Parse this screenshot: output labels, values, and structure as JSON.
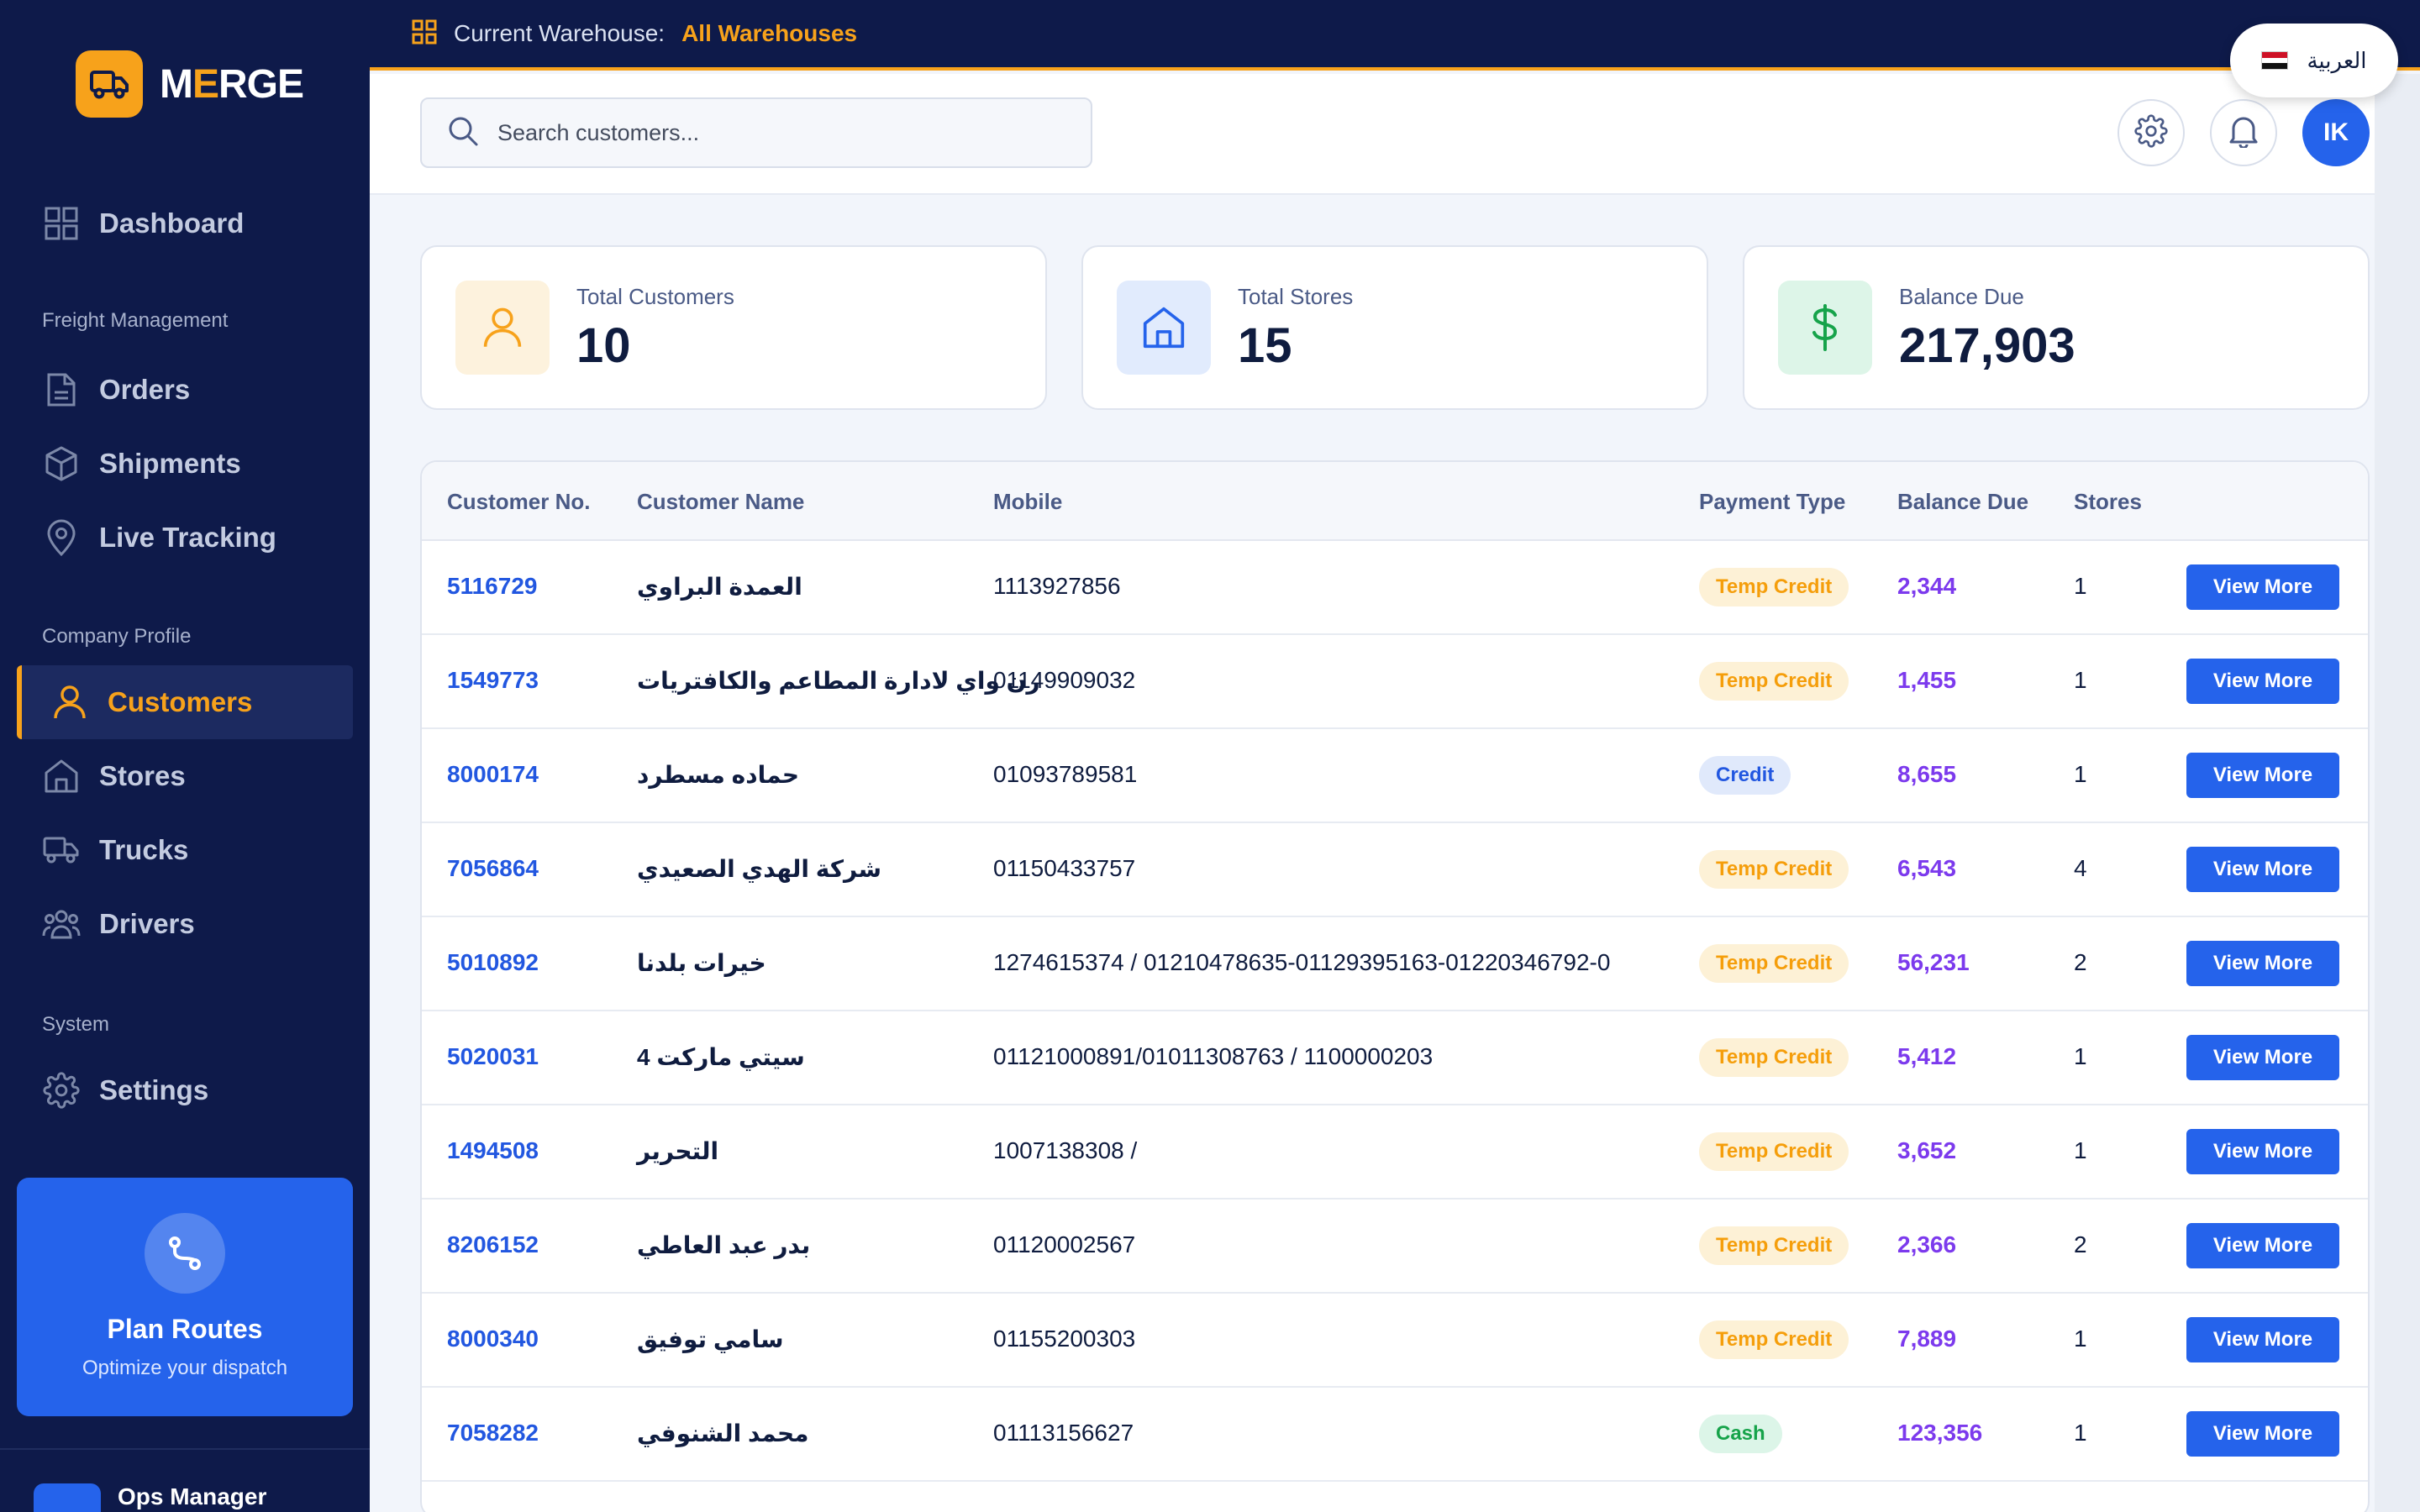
{
  "brand": {
    "name_part1": "M",
    "name_accent": "E",
    "name_part2": "RGE"
  },
  "sidebar": {
    "dashboard": "Dashboard",
    "section_freight": "Freight Management",
    "orders": "Orders",
    "shipments": "Shipments",
    "live_tracking": "Live Tracking",
    "section_company": "Company Profile",
    "customers": "Customers",
    "stores": "Stores",
    "trucks": "Trucks",
    "drivers": "Drivers",
    "section_system": "System",
    "settings": "Settings",
    "plan_title": "Plan Routes",
    "plan_subtitle": "Optimize your dispatch",
    "user_name": "Ops Manager"
  },
  "topbar": {
    "warehouse_label": "Current Warehouse:",
    "warehouse_value": "All Warehouses",
    "language": "العربية"
  },
  "header": {
    "search_placeholder": "Search customers...",
    "avatar_initials": "IK"
  },
  "stats": [
    {
      "label": "Total Customers",
      "value": "10"
    },
    {
      "label": "Total Stores",
      "value": "15"
    },
    {
      "label": "Balance Due",
      "value": "217,903"
    }
  ],
  "table": {
    "columns": [
      "Customer No.",
      "Customer Name",
      "Mobile",
      "Payment Type",
      "Balance Due",
      "Stores"
    ],
    "action_label": "View More",
    "rows": [
      {
        "no": "5116729",
        "name": "العمدة البراوي",
        "mobile": "1113927856",
        "payment": "Temp Credit",
        "balance": "2,344",
        "stores": "1"
      },
      {
        "no": "1549773",
        "name": "رن واي لادارة المطاعم والكافتريات",
        "mobile": "01149909032",
        "payment": "Temp Credit",
        "balance": "1,455",
        "stores": "1"
      },
      {
        "no": "8000174",
        "name": "حماده مسطرد",
        "mobile": "01093789581",
        "payment": "Credit",
        "balance": "8,655",
        "stores": "1"
      },
      {
        "no": "7056864",
        "name": "شركة الهدي الصعيدي",
        "mobile": "01150433757",
        "payment": "Temp Credit",
        "balance": "6,543",
        "stores": "4"
      },
      {
        "no": "5010892",
        "name": "خيرات بلدنا",
        "mobile": "1274615374 / 01210478635-01129395163-01220346792-0",
        "payment": "Temp Credit",
        "balance": "56,231",
        "stores": "2"
      },
      {
        "no": "5020031",
        "name": "سيتي ماركت 4",
        "mobile": "01121000891/01011308763 / 1100000203",
        "payment": "Temp Credit",
        "balance": "5,412",
        "stores": "1"
      },
      {
        "no": "1494508",
        "name": "التحرير",
        "mobile": "1007138308 /",
        "payment": "Temp Credit",
        "balance": "3,652",
        "stores": "1"
      },
      {
        "no": "8206152",
        "name": "بدر عبد العاطي",
        "mobile": "01120002567",
        "payment": "Temp Credit",
        "balance": "2,366",
        "stores": "2"
      },
      {
        "no": "8000340",
        "name": "سامي توفيق",
        "mobile": "01155200303",
        "payment": "Temp Credit",
        "balance": "7,889",
        "stores": "1"
      },
      {
        "no": "7058282",
        "name": "محمد الشنوفي",
        "mobile": "01113156627",
        "payment": "Cash",
        "balance": "123,356",
        "stores": "1"
      }
    ]
  },
  "colors": {
    "sidebar_bg": "#0e1a4a",
    "accent": "#f7a21b",
    "primary": "#2563eb",
    "balance": "#7c3aed"
  }
}
